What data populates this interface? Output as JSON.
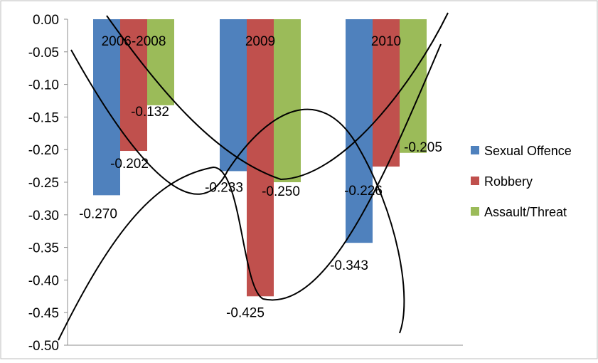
{
  "chart_data": {
    "type": "bar",
    "title": "",
    "xlabel": "",
    "ylabel": "",
    "categories": [
      "2006-2008",
      "2009",
      "2010"
    ],
    "series": [
      {
        "name": "Sexual Offence",
        "color": "#4F81BD",
        "values": [
          -0.27,
          -0.233,
          -0.343
        ],
        "labels": [
          "-0.270",
          "-0.233",
          "-0.343"
        ]
      },
      {
        "name": "Robbery",
        "color": "#C0504D",
        "values": [
          -0.202,
          -0.425,
          -0.226
        ],
        "labels": [
          "-0.202",
          "-0.425",
          "-0.226"
        ]
      },
      {
        "name": "Assault/Threat",
        "color": "#9BBB59",
        "values": [
          -0.132,
          -0.25,
          -0.205
        ],
        "labels": [
          "-0.132",
          "-0.250",
          "-0.205"
        ]
      }
    ],
    "ylim": [
      -0.5,
      0.0
    ],
    "yticks": [
      "0.00",
      "-0.05",
      "-0.10",
      "-0.15",
      "-0.20",
      "-0.25",
      "-0.30",
      "-0.35",
      "-0.40",
      "-0.45",
      "-0.50"
    ],
    "grid": false,
    "legend_position": "right",
    "overlay": "three hand-drawn curves tracing each series"
  }
}
